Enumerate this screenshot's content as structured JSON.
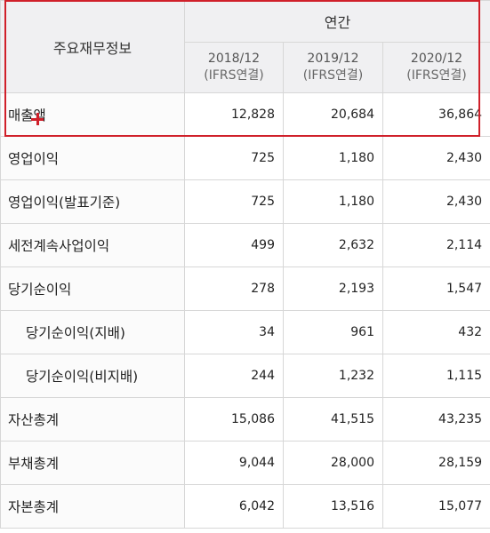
{
  "table": {
    "corner_label": "주요재무정보",
    "period_label": "연간",
    "years": [
      {
        "year": "2018/12",
        "basis": "(IFRS연결)"
      },
      {
        "year": "2019/12",
        "basis": "(IFRS연결)"
      },
      {
        "year": "2020/12",
        "basis": "(IFRS연결)"
      }
    ],
    "rows": [
      {
        "label": "매출액",
        "values": [
          "12,828",
          "20,684",
          "36,864"
        ]
      },
      {
        "label": "영업이익",
        "values": [
          "725",
          "1,180",
          "2,430"
        ]
      },
      {
        "label": "영업이익(발표기준)",
        "values": [
          "725",
          "1,180",
          "2,430"
        ]
      },
      {
        "label": "세전계속사업이익",
        "values": [
          "499",
          "2,632",
          "2,114"
        ]
      },
      {
        "label": "당기순이익",
        "values": [
          "278",
          "2,193",
          "1,547"
        ]
      },
      {
        "label": "당기순이익(지배)",
        "values": [
          "34",
          "961",
          "432"
        ]
      },
      {
        "label": "당기순이익(비지배)",
        "values": [
          "244",
          "1,232",
          "1,115"
        ]
      },
      {
        "label": "자산총계",
        "values": [
          "15,086",
          "41,515",
          "43,235"
        ]
      },
      {
        "label": "부채총계",
        "values": [
          "9,044",
          "28,000",
          "28,159"
        ]
      },
      {
        "label": "자본총계",
        "values": [
          "6,042",
          "13,516",
          "15,077"
        ]
      }
    ]
  },
  "colors": {
    "highlight": "#d0202a",
    "header_bg": "#f0f0f2",
    "grid": "#d7d7d7"
  },
  "icons": {
    "cursor": "crosshair-plus-icon"
  }
}
